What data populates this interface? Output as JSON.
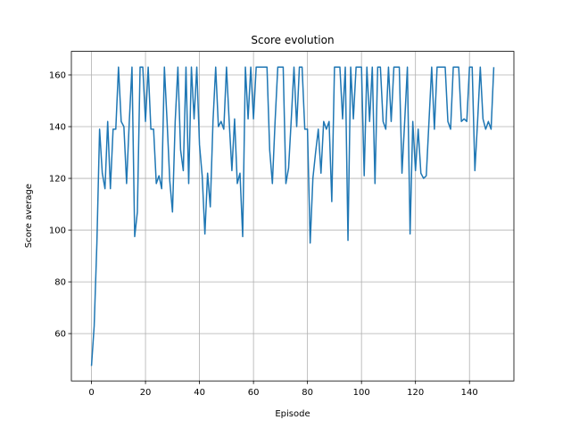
{
  "chart_data": {
    "type": "line",
    "title": "Score evolution",
    "x_label": "Episode",
    "y_label": "Score average",
    "x": [
      0,
      1,
      2,
      3,
      4,
      5,
      6,
      7,
      8,
      9,
      10,
      11,
      12,
      13,
      14,
      15,
      16,
      17,
      18,
      19,
      20,
      21,
      22,
      23,
      24,
      25,
      26,
      27,
      28,
      29,
      30,
      31,
      32,
      33,
      34,
      35,
      36,
      37,
      38,
      39,
      40,
      41,
      42,
      43,
      44,
      45,
      46,
      47,
      48,
      49,
      50,
      51,
      52,
      53,
      54,
      55,
      56,
      57,
      58,
      59,
      60,
      61,
      62,
      63,
      64,
      65,
      66,
      67,
      68,
      69,
      70,
      71,
      72,
      73,
      74,
      75,
      76,
      77,
      78,
      79,
      80,
      81,
      82,
      83,
      84,
      85,
      86,
      87,
      88,
      89,
      90,
      91,
      92,
      93,
      94,
      95,
      96,
      97,
      98,
      99,
      100,
      101,
      102,
      103,
      104,
      105,
      106,
      107,
      108,
      109,
      110,
      111,
      112,
      113,
      114,
      115,
      116,
      117,
      118,
      119,
      120,
      121,
      122,
      123,
      124,
      125,
      126,
      127,
      128,
      129,
      130,
      131,
      132,
      133,
      134,
      135,
      136,
      137,
      138,
      139,
      140,
      141,
      142,
      143,
      144,
      145,
      146,
      147,
      148,
      149
    ],
    "series": [
      {
        "name": "Score average",
        "color": "#1f77b4",
        "values": [
          47.5,
          63,
          95,
          139,
          122,
          116,
          142,
          116,
          139,
          139,
          163,
          142,
          140,
          118,
          142,
          163,
          97.5,
          107,
          163,
          163,
          142,
          163,
          139,
          139,
          118,
          121,
          116,
          163,
          142,
          119,
          107,
          142,
          163,
          131,
          123,
          163,
          118,
          163,
          143,
          163,
          133,
          121,
          98.5,
          122,
          109,
          142,
          163,
          140,
          142,
          139,
          163,
          142,
          123,
          143,
          118,
          122,
          97.5,
          163,
          143,
          163,
          143,
          163,
          163,
          163,
          163,
          163,
          131,
          118,
          142,
          163,
          163,
          163,
          118,
          124,
          143,
          163,
          140,
          163,
          163,
          139,
          139,
          95,
          120,
          130,
          139,
          122,
          142,
          139,
          142,
          111,
          163,
          163,
          163,
          143,
          163,
          96,
          163,
          143,
          163,
          163,
          163,
          121,
          163,
          142,
          163,
          118,
          163,
          163,
          142,
          139,
          163,
          142,
          163,
          163,
          163,
          122,
          142,
          163,
          98.5,
          142,
          123,
          139,
          122,
          120,
          121,
          142,
          163,
          139,
          163,
          163,
          163,
          163,
          142,
          139,
          163,
          163,
          163,
          142,
          143,
          142,
          163,
          163,
          123,
          142,
          163,
          143,
          139,
          142,
          139,
          163
        ]
      }
    ],
    "xlim": [
      -7.45,
      156.45
    ],
    "ylim": [
      41.7,
      169.1
    ],
    "xticks": [
      0,
      20,
      40,
      60,
      80,
      100,
      120,
      140
    ],
    "yticks": [
      60,
      80,
      100,
      120,
      140,
      160
    ],
    "grid": true
  }
}
